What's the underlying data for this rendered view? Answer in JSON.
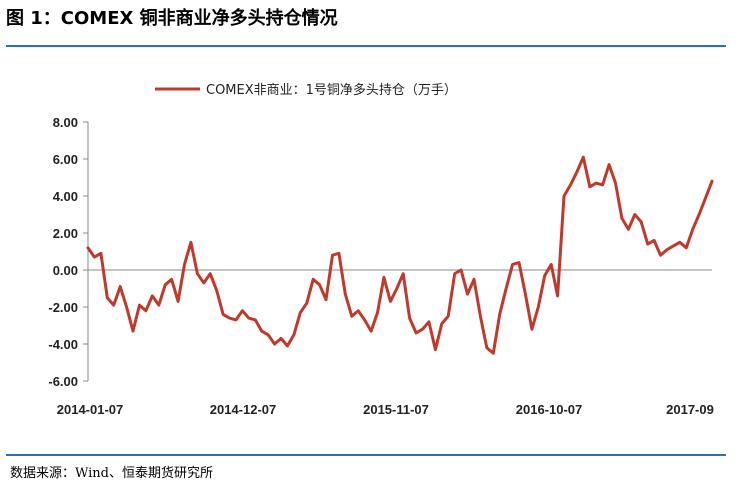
{
  "figure": {
    "title": "图 1：COMEX 铜非商业净多头持仓情况",
    "source": "数据来源：Wind、恒泰期货研究所"
  },
  "colors": {
    "series": "#c0392b",
    "rule": "#2e6fb0",
    "axis": "#888888"
  },
  "chart_data": {
    "type": "line",
    "title": "",
    "xlabel": "",
    "ylabel": "",
    "ylim": [
      -6,
      8
    ],
    "y_ticks": [
      "8.00",
      "6.00",
      "4.00",
      "2.00",
      "0.00",
      "-2.00",
      "-4.00",
      "-6.00"
    ],
    "x_tick_labels": [
      "2014-01-07",
      "2014-12-07",
      "2015-11-07",
      "2016-10-07",
      "2017-09"
    ],
    "grid": false,
    "legend_position": "top",
    "series": [
      {
        "name": "COMEX非商业：1号铜净多头持仓（万手）",
        "x": [
          "2014-01-07",
          "2014-01-21",
          "2014-02-04",
          "2014-02-18",
          "2014-03-04",
          "2014-03-18",
          "2014-04-01",
          "2014-04-15",
          "2014-04-29",
          "2014-05-13",
          "2014-05-27",
          "2014-06-10",
          "2014-06-24",
          "2014-07-08",
          "2014-07-22",
          "2014-08-05",
          "2014-08-19",
          "2014-09-02",
          "2014-09-16",
          "2014-09-30",
          "2014-10-14",
          "2014-10-28",
          "2014-11-11",
          "2014-11-25",
          "2014-12-09",
          "2014-12-23",
          "2015-01-06",
          "2015-01-20",
          "2015-02-03",
          "2015-02-17",
          "2015-03-03",
          "2015-03-17",
          "2015-03-31",
          "2015-04-14",
          "2015-04-28",
          "2015-05-12",
          "2015-05-26",
          "2015-06-09",
          "2015-06-23",
          "2015-07-07",
          "2015-07-21",
          "2015-08-04",
          "2015-08-18",
          "2015-09-01",
          "2015-09-15",
          "2015-09-29",
          "2015-10-13",
          "2015-10-27",
          "2015-11-10",
          "2015-11-24",
          "2015-12-08",
          "2015-12-22",
          "2016-01-05",
          "2016-01-19",
          "2016-02-02",
          "2016-02-16",
          "2016-03-01",
          "2016-03-15",
          "2016-03-29",
          "2016-04-12",
          "2016-04-26",
          "2016-05-10",
          "2016-05-24",
          "2016-06-07",
          "2016-06-21",
          "2016-07-05",
          "2016-07-19",
          "2016-08-02",
          "2016-08-16",
          "2016-08-30",
          "2016-09-13",
          "2016-09-27",
          "2016-10-11",
          "2016-10-25",
          "2016-11-08",
          "2016-11-22",
          "2016-12-06",
          "2016-12-20",
          "2017-01-03",
          "2017-01-17",
          "2017-01-31",
          "2017-02-14",
          "2017-02-28",
          "2017-03-14",
          "2017-03-28",
          "2017-04-11",
          "2017-04-25",
          "2017-05-09",
          "2017-05-23",
          "2017-06-06",
          "2017-06-20",
          "2017-07-04",
          "2017-07-18",
          "2017-08-01",
          "2017-08-15",
          "2017-08-29",
          "2017-09-12",
          "2017-09-26"
        ],
        "values": [
          1.2,
          0.7,
          0.9,
          -1.5,
          -1.9,
          -0.9,
          -2.0,
          -3.3,
          -1.9,
          -2.2,
          -1.4,
          -1.9,
          -0.8,
          -0.5,
          -1.7,
          0.3,
          1.5,
          -0.2,
          -0.7,
          -0.2,
          -1.1,
          -2.4,
          -2.6,
          -2.7,
          -2.2,
          -2.6,
          -2.7,
          -3.3,
          -3.5,
          -4.0,
          -3.7,
          -4.1,
          -3.5,
          -2.3,
          -1.8,
          -0.5,
          -0.8,
          -1.6,
          0.8,
          0.9,
          -1.3,
          -2.5,
          -2.2,
          -2.7,
          -3.3,
          -2.3,
          -0.4,
          -1.7,
          -1.0,
          -0.2,
          -2.6,
          -3.4,
          -3.2,
          -2.8,
          -4.3,
          -2.9,
          -2.5,
          -0.2,
          0.0,
          -1.3,
          -0.5,
          -2.5,
          -4.2,
          -4.5,
          -2.4,
          -1.0,
          0.3,
          0.4,
          -1.3,
          -3.2,
          -2.0,
          -0.3,
          0.3,
          -1.4,
          4.0,
          4.6,
          5.3,
          6.1,
          4.5,
          4.7,
          4.6,
          5.7,
          4.7,
          2.8,
          2.2,
          3.0,
          2.6,
          1.4,
          1.6,
          0.8,
          1.1,
          1.3,
          1.5,
          1.2,
          2.2,
          3.0,
          3.9,
          4.8
        ]
      }
    ]
  }
}
